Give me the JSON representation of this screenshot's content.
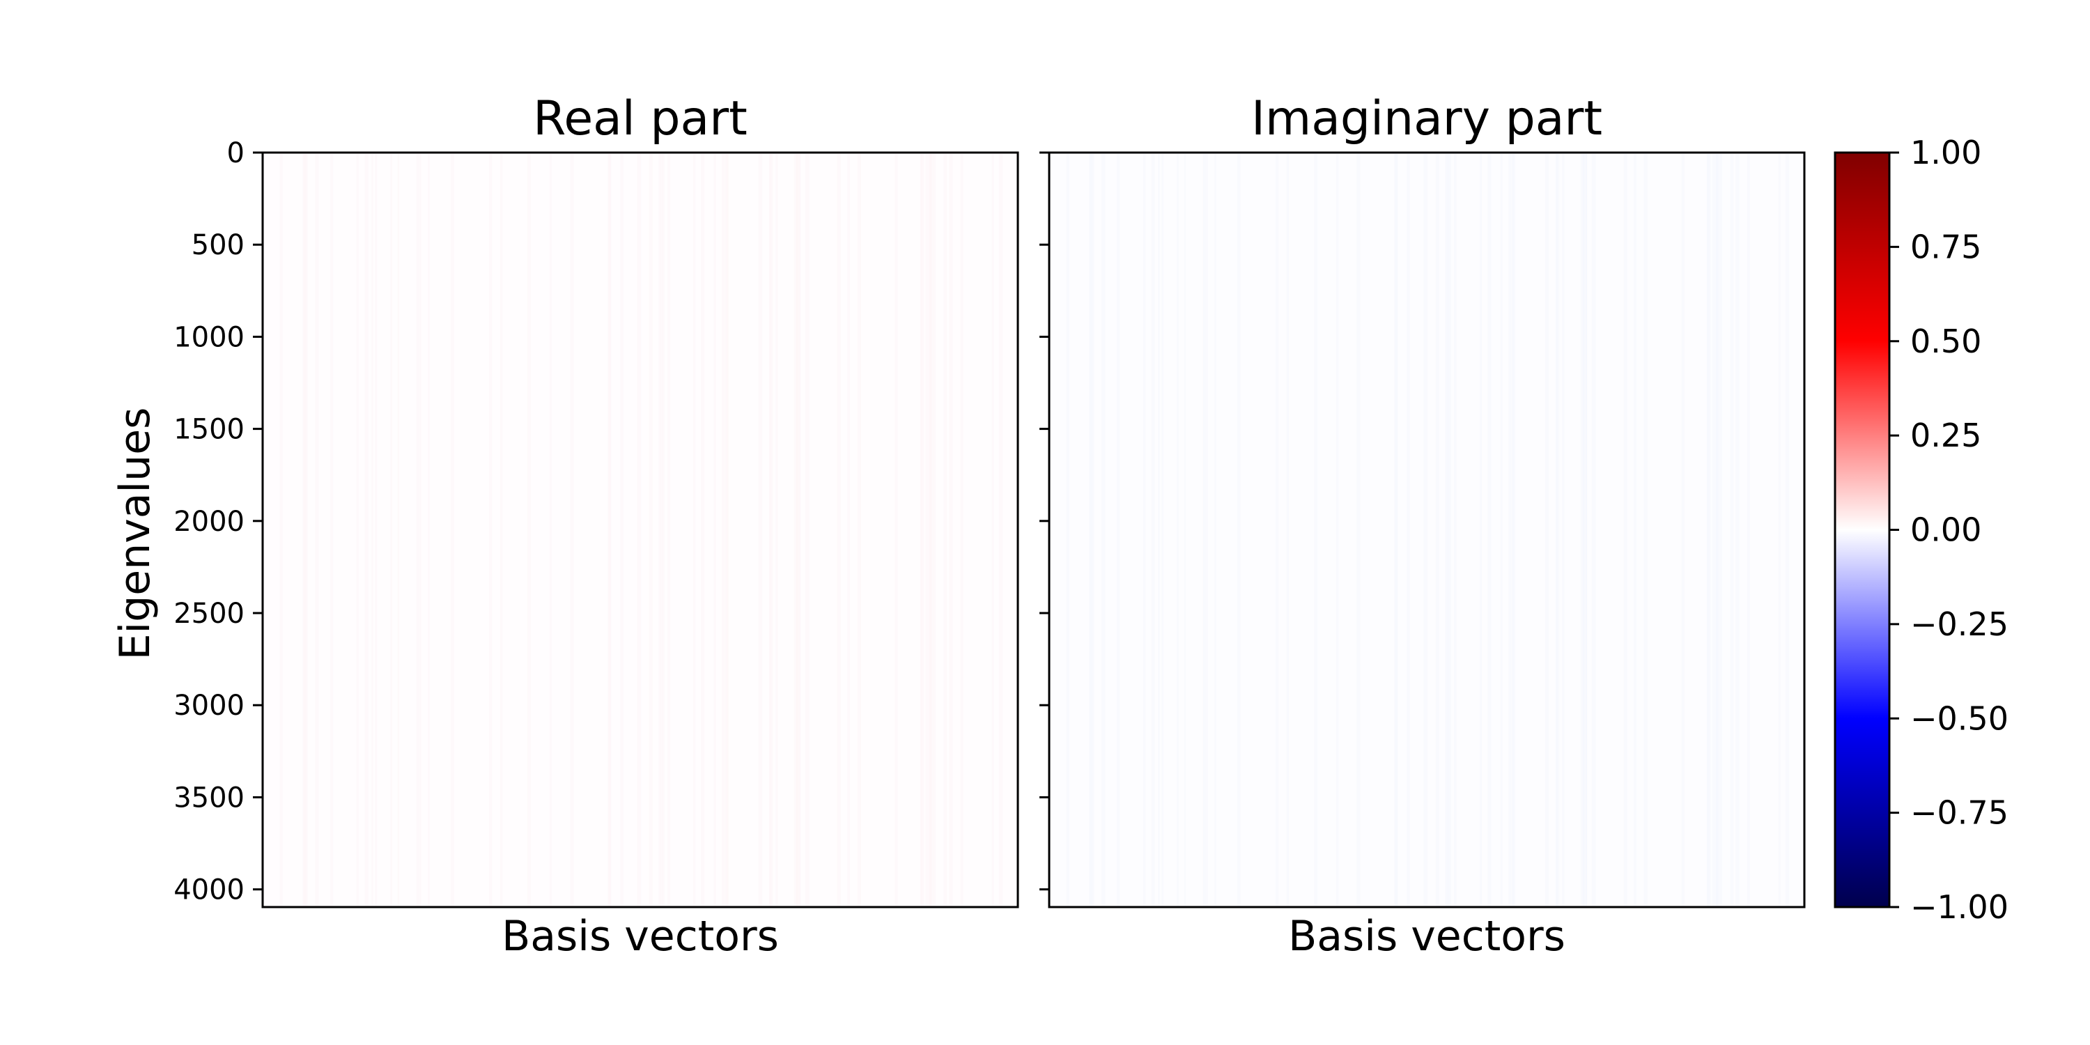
{
  "chart_data": [
    {
      "type": "heatmap",
      "title": "Real part",
      "xlabel": "Basis vectors",
      "ylabel": "Eigenvalues",
      "ylim": [
        4096,
        0
      ],
      "yticks": [
        "0",
        "500",
        "1000",
        "1500",
        "2000",
        "2500",
        "3000",
        "3500",
        "4000"
      ],
      "yticks_values": [
        0,
        500,
        1000,
        1500,
        2000,
        2500,
        3000,
        3500,
        4000
      ],
      "xticks": [],
      "rows": 4096,
      "columns": 4096,
      "value_description_range": [
        -0.02,
        0.02
      ],
      "colormap": "seismic"
    },
    {
      "type": "heatmap",
      "title": "Imaginary part",
      "xlabel": "Basis vectors",
      "ylabel": "",
      "ylim": [
        4096,
        0
      ],
      "yticks": [],
      "yticks_values": [
        0,
        500,
        1000,
        1500,
        2000,
        2500,
        3000,
        3500,
        4000
      ],
      "xticks": [],
      "rows": 4096,
      "columns": 4096,
      "value_description_range": [
        -0.02,
        0.02
      ],
      "colormap": "seismic"
    }
  ],
  "colorbar": {
    "min": -1.0,
    "max": 1.0,
    "ticks": [
      1.0,
      0.75,
      0.5,
      0.25,
      0.0,
      -0.25,
      -0.5,
      -0.75,
      -1.0
    ],
    "tick_labels": [
      "1.00",
      "0.75",
      "0.50",
      "0.25",
      "0.00",
      "−0.25",
      "−0.50",
      "−0.75",
      "−1.00"
    ],
    "colors": {
      "top": "#800000",
      "upper": "#ff0000",
      "middle": "#ffffff",
      "lower": "#0000ff",
      "bottom": "#00004c"
    }
  }
}
